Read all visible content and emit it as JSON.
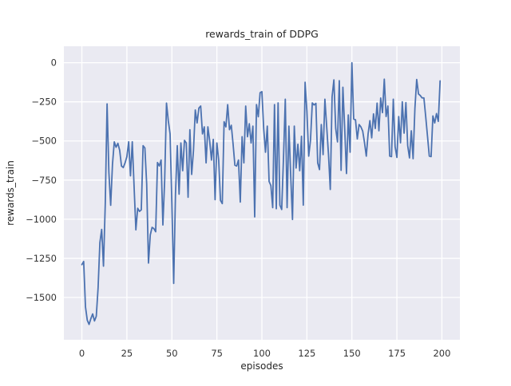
{
  "figure": {
    "title": "rewards_train of DDPG",
    "xlabel": "episodes",
    "ylabel": "rewards_train"
  },
  "chart_data": {
    "type": "line",
    "title": "rewards_train of DDPG",
    "xlabel": "episodes",
    "ylabel": "rewards_train",
    "x_mode": "index",
    "xticks": [
      0,
      25,
      50,
      75,
      100,
      125,
      150,
      175,
      200
    ],
    "yticks": [
      0,
      -250,
      -500,
      -750,
      -1000,
      -1250,
      -1500
    ],
    "xlim": [
      -10,
      210
    ],
    "ylim": [
      -1770,
      105
    ],
    "grid": true,
    "legend_position": "none",
    "plot_background": "#eaeaf2",
    "grid_color": "#ffffff",
    "text_color": "#262626",
    "series": [
      {
        "name": "rewards_train",
        "color": "#4c72b0",
        "values": [
          -1290,
          -1270,
          -1560,
          -1645,
          -1672,
          -1635,
          -1605,
          -1650,
          -1620,
          -1440,
          -1150,
          -1065,
          -1300,
          -900,
          -263,
          -700,
          -911,
          -650,
          -506,
          -540,
          -515,
          -560,
          -660,
          -670,
          -640,
          -600,
          -505,
          -723,
          -505,
          -790,
          -1068,
          -930,
          -950,
          -940,
          -530,
          -545,
          -774,
          -1280,
          -1100,
          -1052,
          -1060,
          -1080,
          -638,
          -660,
          -622,
          -1037,
          -750,
          -258,
          -370,
          -455,
          -900,
          -1410,
          -840,
          -530,
          -840,
          -513,
          -690,
          -496,
          -513,
          -860,
          -428,
          -714,
          -560,
          -302,
          -385,
          -290,
          -277,
          -455,
          -410,
          -640,
          -410,
          -500,
          -622,
          -490,
          -875,
          -513,
          -622,
          -880,
          -900,
          -377,
          -410,
          -268,
          -428,
          -400,
          -520,
          -655,
          -660,
          -622,
          -890,
          -473,
          -640,
          -277,
          -473,
          -390,
          -513,
          -405,
          -985,
          -268,
          -345,
          -192,
          -185,
          -420,
          -572,
          -405,
          -759,
          -785,
          -926,
          -268,
          -933,
          -257,
          -910,
          -938,
          -610,
          -233,
          -926,
          -405,
          -720,
          -1002,
          -405,
          -673,
          -521,
          -690,
          -470,
          -910,
          -125,
          -310,
          -597,
          -496,
          -257,
          -270,
          -260,
          -640,
          -683,
          -395,
          -587,
          -233,
          -410,
          -587,
          -810,
          -218,
          -110,
          -420,
          -506,
          -115,
          -688,
          -157,
          -420,
          -708,
          -334,
          -572,
          0,
          -360,
          -365,
          -487,
          -395,
          -410,
          -437,
          -510,
          -597,
          -455,
          -370,
          -480,
          -327,
          -420,
          -258,
          -435,
          -226,
          -319,
          -105,
          -344,
          -277,
          -597,
          -600,
          -233,
          -537,
          -605,
          -344,
          -512,
          -250,
          -450,
          -255,
          -530,
          -608,
          -435,
          -613,
          -293,
          -107,
          -200,
          -210,
          -225,
          -225,
          -344,
          -470,
          -597,
          -600,
          -340,
          -385,
          -325,
          -375,
          -116
        ]
      }
    ]
  }
}
